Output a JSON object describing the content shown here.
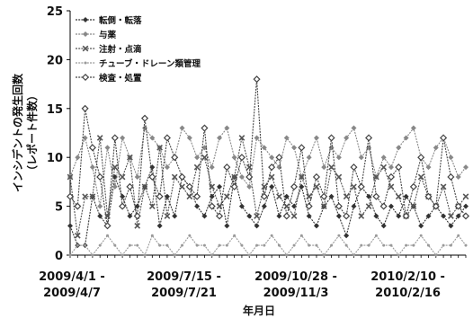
{
  "chart_data": {
    "type": "line",
    "title": "",
    "ylabel_line1": "インシデントの発生回数",
    "ylabel_line2": "（レポート件数）",
    "xlabel": "年月日",
    "ylim": [
      0,
      25
    ],
    "yticks": [
      0,
      5,
      10,
      15,
      20,
      25
    ],
    "grid": false,
    "legend_position": "top-left",
    "num_weeks": 54,
    "xtick_labels": [
      {
        "index": 0,
        "line1": "2009/4/1 -",
        "line2": "2009/4/7"
      },
      {
        "index": 15,
        "line1": "2009/7/15 -",
        "line2": "2009/7/21"
      },
      {
        "index": 30,
        "line1": "2009/10/28 -",
        "line2": "2009/11/3"
      },
      {
        "index": 45,
        "line1": "2010/2/10 -",
        "line2": "2010/2/16"
      }
    ],
    "series": [
      {
        "name": "転倒・転落",
        "color": "#333333",
        "marker": "diamond",
        "values": [
          3,
          1,
          1,
          6,
          4,
          3,
          8,
          6,
          4,
          5,
          7,
          9,
          3,
          6,
          4,
          8,
          7,
          5,
          4,
          6,
          7,
          3,
          8,
          5,
          4,
          3,
          5,
          7,
          4,
          6,
          5,
          7,
          4,
          3,
          5,
          6,
          4,
          2,
          5,
          7,
          6,
          4,
          3,
          5,
          4,
          6,
          5,
          3,
          4,
          5,
          4,
          3,
          4,
          5
        ]
      },
      {
        "name": "与薬",
        "color": "#888888",
        "marker": "diamond",
        "values": [
          8,
          10,
          12,
          9,
          5,
          11,
          7,
          12,
          10,
          8,
          13,
          12,
          11,
          9,
          10,
          13,
          12,
          10,
          11,
          9,
          12,
          13,
          10,
          8,
          7,
          12,
          11,
          10,
          9,
          12,
          11,
          8,
          10,
          12,
          9,
          11,
          10,
          12,
          13,
          10,
          11,
          8,
          10,
          9,
          11,
          12,
          13,
          10,
          9,
          11,
          12,
          10,
          8,
          9
        ]
      },
      {
        "name": "注射・点滴",
        "color": "#555555",
        "marker": "x",
        "values": [
          8,
          2,
          6,
          6,
          12,
          4,
          9,
          8,
          10,
          3,
          7,
          5,
          11,
          4,
          8,
          7,
          6,
          9,
          10,
          7,
          5,
          6,
          8,
          12,
          9,
          4,
          7,
          8,
          6,
          5,
          4,
          8,
          6,
          7,
          5,
          9,
          8,
          6,
          7,
          4,
          5,
          8,
          9,
          7,
          6,
          4,
          5,
          8,
          6,
          5,
          7,
          4,
          5,
          6
        ]
      },
      {
        "name": "チューブ・ドレーン類管理",
        "color": "#999999",
        "marker": "dot",
        "values": [
          0,
          1,
          1,
          0,
          1,
          2,
          1,
          0,
          1,
          1,
          0,
          2,
          1,
          1,
          0,
          1,
          2,
          1,
          1,
          0,
          1,
          1,
          2,
          1,
          0,
          1,
          1,
          2,
          1,
          0,
          1,
          2,
          1,
          1,
          0,
          1,
          2,
          1,
          0,
          1,
          1,
          2,
          1,
          1,
          0,
          1,
          1,
          2,
          1,
          0,
          1,
          1,
          2,
          1
        ]
      },
      {
        "name": "検査・処置",
        "color": "#444444",
        "marker": "diamond-hollow",
        "values": [
          6,
          5,
          15,
          11,
          8,
          3,
          12,
          5,
          7,
          4,
          14,
          8,
          6,
          12,
          10,
          8,
          7,
          6,
          13,
          5,
          4,
          9,
          7,
          10,
          8,
          18,
          6,
          9,
          10,
          4,
          7,
          11,
          5,
          8,
          6,
          12,
          5,
          4,
          9,
          7,
          12,
          6,
          5,
          8,
          9,
          4,
          7,
          10,
          6,
          5,
          12,
          8,
          5,
          4
        ]
      }
    ]
  }
}
